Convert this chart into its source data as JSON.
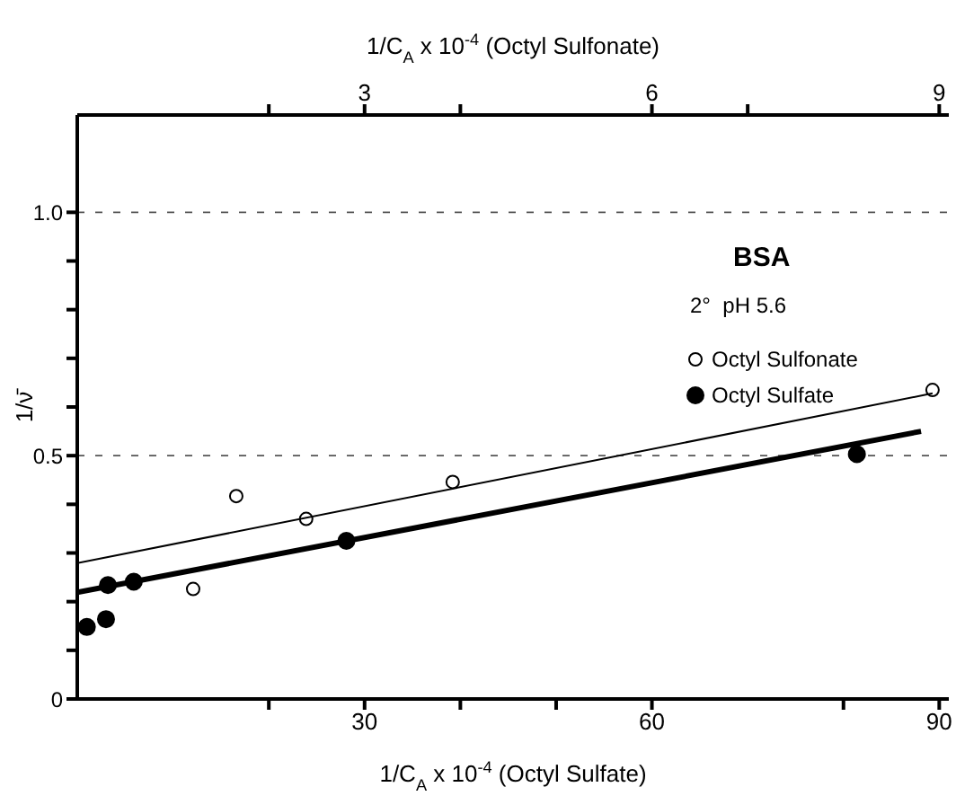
{
  "chart_data": {
    "type": "scatter",
    "xlabel": "1/C$_{A}$ x 10$^{-4}$ (Octyl Sulfate)",
    "x2label": "1/C$_{A}$ x 10$^{-4}$ (Octyl Sulfonate)",
    "ylabel": "1/ν̄",
    "annotations": [
      "BSA",
      "2°  pH 5.6"
    ],
    "xlim": [
      0,
      91
    ],
    "xticks": [
      {
        "value": 20,
        "label": null
      },
      30,
      {
        "value": 40,
        "label": null
      },
      {
        "value": 50,
        "label": null
      },
      60,
      {
        "value": 80,
        "label": null
      },
      90
    ],
    "x2lim": [
      0,
      9.1
    ],
    "x2ticks": [
      {
        "value": 2,
        "label": null
      },
      3,
      {
        "value": 4,
        "label": null
      },
      6,
      {
        "value": 7,
        "label": null
      },
      9
    ],
    "ylim": [
      0,
      1.2
    ],
    "yticks": [
      0,
      {
        "value": 0.1,
        "label": null
      },
      {
        "value": 0.2,
        "label": null
      },
      {
        "value": 0.3,
        "label": null
      },
      {
        "value": 0.4,
        "label": null
      },
      0.5,
      {
        "value": 0.6,
        "label": null
      },
      {
        "value": 0.7,
        "label": null
      },
      {
        "value": 0.8,
        "label": null
      },
      {
        "value": 0.9,
        "label": null
      },
      {
        "value": 1,
        "label": "1.0"
      }
    ],
    "grid": "y",
    "legend": "right",
    "series": [
      {
        "name": "Octyl Sulfonate",
        "type": "scatter",
        "marker": "circle",
        "axis": "x2",
        "color": "#000000",
        "x": [
          1.21,
          1.66,
          2.39,
          3.92,
          8.93
        ],
        "values": [
          0.226,
          0.417,
          0.37,
          0.446,
          0.635
        ]
      },
      {
        "name": "Octyl Sulfate",
        "type": "scatter",
        "marker": "circle",
        "color": "#000000",
        "x": [
          1,
          3,
          3.2,
          5.9,
          28.1,
          81.4
        ],
        "values": [
          0.148,
          0.164,
          0.234,
          0.241,
          0.325,
          0.503
        ]
      },
      {
        "type": "line",
        "axis": "x2",
        "color": "#000000",
        "x": [
          0,
          8.93
        ],
        "values": [
          0.279,
          0.628
        ]
      },
      {
        "type": "line",
        "color": "#000000",
        "x": [
          0,
          88.1
        ],
        "values": [
          0.219,
          0.55
        ]
      }
    ]
  }
}
